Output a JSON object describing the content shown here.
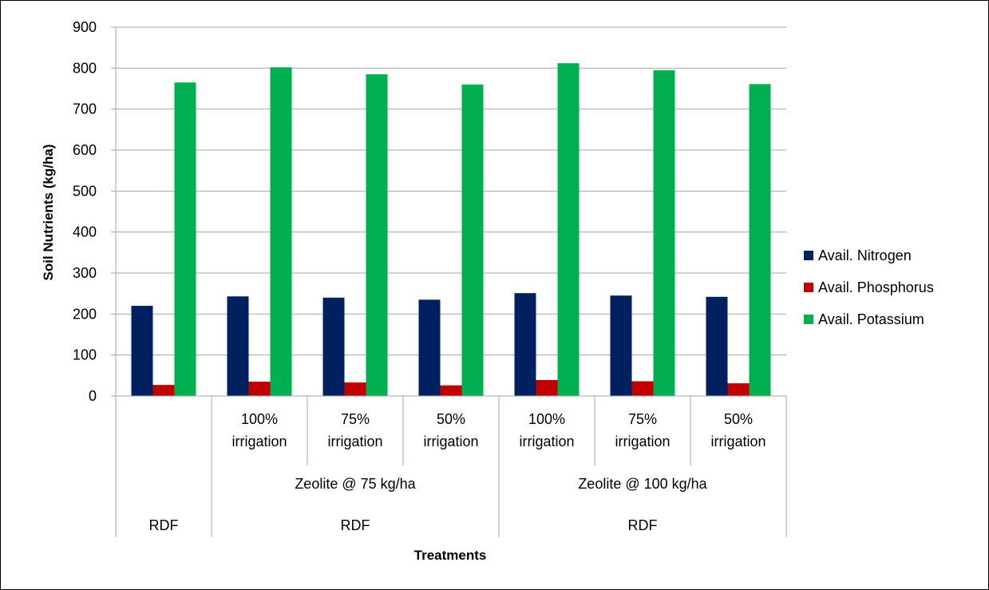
{
  "chart_data": {
    "type": "bar",
    "title": "",
    "xlabel": "Treatments",
    "ylabel": "Soil Nutrients (kg/ha)",
    "ylim": [
      0,
      900
    ],
    "yticks": [
      0,
      100,
      200,
      300,
      400,
      500,
      600,
      700,
      800,
      900
    ],
    "grid": true,
    "legend_position": "right",
    "categories": [
      [
        "",
        "",
        "RDF"
      ],
      [
        "100% irrigation",
        "Zeolite @ 75 kg/ha",
        "RDF"
      ],
      [
        "75% irrigation",
        "Zeolite @ 75 kg/ha",
        "RDF"
      ],
      [
        "50% irrigation",
        "Zeolite @ 75 kg/ha",
        "RDF"
      ],
      [
        "100% irrigation",
        "Zeolite @ 100 kg/ha",
        "RDF"
      ],
      [
        "75% irrigation",
        "Zeolite @ 100 kg/ha",
        "RDF"
      ],
      [
        "50% irrigation",
        "Zeolite @ 100 kg/ha",
        "RDF"
      ]
    ],
    "level1_labels": [
      [
        "",
        ""
      ],
      [
        "100%",
        "irrigation"
      ],
      [
        "75%",
        "irrigation"
      ],
      [
        "50%",
        "irrigation"
      ],
      [
        "100%",
        "irrigation"
      ],
      [
        "75%",
        "irrigation"
      ],
      [
        "50%",
        "irrigation"
      ]
    ],
    "level2_groups": [
      {
        "label": "",
        "start": 0,
        "end": 0
      },
      {
        "label": "Zeolite @ 75 kg/ha",
        "start": 1,
        "end": 3
      },
      {
        "label": "Zeolite @ 100 kg/ha",
        "start": 4,
        "end": 6
      }
    ],
    "level3_groups": [
      {
        "label": "RDF",
        "start": 0,
        "end": 0
      },
      {
        "label": "RDF",
        "start": 1,
        "end": 3
      },
      {
        "label": "RDF",
        "start": 4,
        "end": 6
      }
    ],
    "series": [
      {
        "name": "Avail. Nitrogen",
        "color": "#002060",
        "values": [
          220,
          243,
          240,
          235,
          251,
          245,
          242
        ]
      },
      {
        "name": "Avail. Phosphorus",
        "color": "#C00000",
        "values": [
          27,
          35,
          33,
          26,
          39,
          36,
          31
        ]
      },
      {
        "name": "Avail. Potassium",
        "color": "#00B050",
        "values": [
          765,
          802,
          785,
          760,
          812,
          795,
          761
        ]
      }
    ]
  }
}
